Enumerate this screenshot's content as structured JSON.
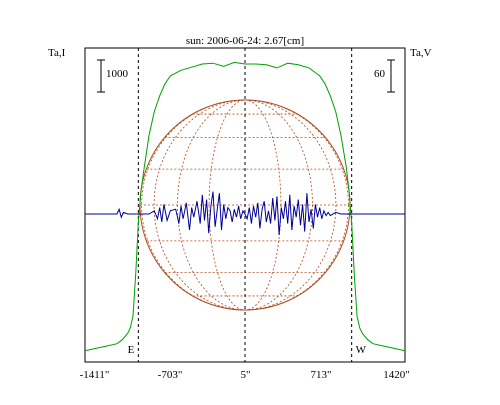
{
  "chart_data": {
    "type": "line",
    "title": "sun: 2006-06-24: 2.67[cm]",
    "left_axis_label": "Ta,I",
    "right_axis_label": "Ta,V",
    "left_scale_bar_label": "1000",
    "right_scale_bar_label": "60",
    "x_tick_labels": [
      "-1411\"",
      "-703\"",
      "5\"",
      "713\"",
      "1420\""
    ],
    "x_range": [
      -1500,
      1500
    ],
    "limb_markers": [
      {
        "label": "E",
        "x": -1000
      },
      {
        "label": "W",
        "x": 1000
      }
    ],
    "center_marker_x": 0,
    "grid": false,
    "colors": {
      "stokes_i": "#00a000",
      "stokes_v": "#000099",
      "disk": "#b24a1e",
      "axes": "#000000"
    },
    "series": [
      {
        "values_key": "stokes_i",
        "x": [
          -1500,
          -1400,
          -1300,
          -1200,
          -1150,
          -1100,
          -1075,
          -1050,
          -1025,
          -1000,
          -975,
          -950,
          -900,
          -850,
          -800,
          -750,
          -700,
          -600,
          -500,
          -400,
          -300,
          -200,
          -100,
          0,
          100,
          200,
          300,
          400,
          500,
          600,
          700,
          750,
          800,
          850,
          900,
          950,
          975,
          1000,
          1025,
          1050,
          1075,
          1100,
          1150,
          1200,
          1300,
          1400,
          1500
        ],
        "y": [
          40,
          70,
          100,
          130,
          180,
          260,
          330,
          480,
          1000,
          1650,
          2050,
          2300,
          2750,
          3050,
          3250,
          3400,
          3500,
          3570,
          3610,
          3650,
          3660,
          3620,
          3670,
          3650,
          3650,
          3640,
          3600,
          3660,
          3640,
          3600,
          3500,
          3400,
          3250,
          3050,
          2750,
          2350,
          2050,
          1650,
          1000,
          480,
          330,
          260,
          180,
          130,
          100,
          70,
          40
        ]
      },
      {
        "values_key": "stokes_v",
        "x": [
          -1500,
          -1200,
          -1180,
          -1160,
          -1140,
          -1100,
          -1000,
          -900,
          -850,
          -820,
          -800,
          -780,
          -760,
          -730,
          -700,
          -650,
          -620,
          -600,
          -580,
          -550,
          -520,
          -500,
          -480,
          -450,
          -420,
          -400,
          -380,
          -360,
          -340,
          -320,
          -300,
          -280,
          -260,
          -240,
          -220,
          -200,
          -180,
          -160,
          -140,
          -120,
          -100,
          -80,
          -60,
          -40,
          -20,
          0,
          20,
          40,
          60,
          80,
          100,
          120,
          140,
          160,
          180,
          200,
          220,
          240,
          260,
          280,
          300,
          320,
          340,
          360,
          380,
          400,
          420,
          440,
          460,
          480,
          500,
          520,
          540,
          560,
          580,
          600,
          620,
          640,
          660,
          680,
          700,
          720,
          740,
          760,
          780,
          800,
          850,
          900,
          1000,
          1100,
          1200,
          1500
        ],
        "y": [
          0,
          0,
          3,
          -2,
          1,
          0,
          0,
          0,
          2,
          -3,
          4,
          -5,
          6,
          -4,
          2,
          3,
          -6,
          5,
          -3,
          7,
          -10,
          4,
          -2,
          8,
          -6,
          12,
          -4,
          9,
          -12,
          5,
          14,
          -8,
          3,
          13,
          -10,
          6,
          -3,
          4,
          2,
          -5,
          3,
          -2,
          5,
          -3,
          2,
          0,
          -3,
          4,
          -6,
          5,
          -2,
          7,
          -9,
          3,
          8,
          -5,
          2,
          -6,
          10,
          -4,
          11,
          -13,
          4,
          -3,
          8,
          -6,
          12,
          -10,
          5,
          -2,
          9,
          -7,
          6,
          -11,
          13,
          -5,
          3,
          -9,
          6,
          -2,
          4,
          -3,
          2,
          -1,
          1,
          -1,
          1,
          0,
          0,
          0,
          0,
          0
        ]
      }
    ]
  }
}
